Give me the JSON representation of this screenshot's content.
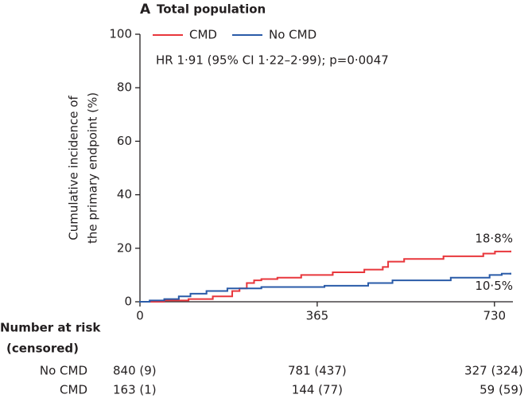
{
  "chart_data": {
    "type": "step",
    "panel": "A",
    "title": "Total population",
    "ylabel": [
      "Cumulative incidence of",
      "the primary endpoint (%)"
    ],
    "annotation": "HR 1·91 (95% CI 1·22–2·99); p=0·0047",
    "xlim": [
      0,
      768
    ],
    "xticks": [
      0,
      365,
      730
    ],
    "ylim": [
      0,
      100
    ],
    "yticks": [
      0,
      20,
      40,
      60,
      80,
      100
    ],
    "series": [
      {
        "name": "CMD",
        "color": "#e8373c",
        "x": [
          0,
          50,
          100,
          150,
          190,
          205,
          220,
          235,
          250,
          283,
          332,
          397,
          462,
          500,
          511,
          544,
          625,
          707,
          731,
          763
        ],
        "values": [
          0,
          0.5,
          1,
          2,
          4,
          5,
          7,
          8,
          8.5,
          9,
          10,
          11,
          12,
          13,
          15,
          16,
          17,
          18,
          18.8,
          18.8
        ],
        "end_label": "18·8%"
      },
      {
        "name": "No CMD",
        "color": "#2a5ba8",
        "x": [
          0,
          20,
          50,
          80,
          104,
          137,
          180,
          250,
          380,
          470,
          520,
          640,
          720,
          745,
          763
        ],
        "values": [
          0,
          0.5,
          1,
          2,
          3,
          4,
          5,
          5.5,
          6,
          7,
          8,
          9,
          10,
          10.5,
          10.5
        ],
        "end_label": "10·5%"
      }
    ],
    "risk_table": {
      "title": [
        "Number at risk",
        "(censored)"
      ],
      "rows": [
        {
          "name": "No CMD",
          "values": [
            "840 (9)",
            "781 (437)",
            "327 (324)"
          ]
        },
        {
          "name": "CMD",
          "values": [
            "163 (1)",
            "144 (77)",
            "59 (59)"
          ]
        }
      ]
    }
  }
}
